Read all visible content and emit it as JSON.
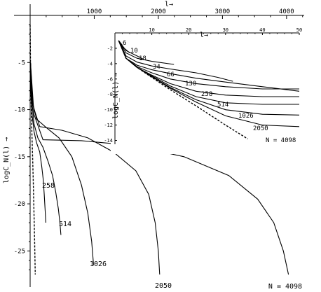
{
  "chart_data": [
    {
      "type": "line",
      "id": "main",
      "xlabel": "l→",
      "ylabel": "logC_N(l) →",
      "xlim": [
        -20,
        4300
      ],
      "ylim": [
        -27.5,
        0
      ],
      "xticks": [
        1000,
        2000,
        3000,
        4000
      ],
      "yticks": [
        -5,
        -10,
        -15,
        -20,
        -25
      ],
      "grid": false,
      "series": [
        {
          "name": "258",
          "x": [
            5,
            10,
            30,
            60,
            100,
            150,
            180,
            205,
            220,
            235,
            245
          ],
          "y": [
            -5.0,
            -8.0,
            -10.5,
            -12.3,
            -13.5,
            -14.5,
            -16.0,
            -17.5,
            -19.0,
            -20.8,
            -22.0
          ]
        },
        {
          "name": "514",
          "x": [
            5,
            20,
            60,
            120,
            200,
            280,
            350,
            400,
            440,
            465,
            480
          ],
          "y": [
            -5.0,
            -8.5,
            -11.5,
            -13.0,
            -14.0,
            -15.5,
            -17.0,
            -18.8,
            -20.5,
            -22.0,
            -23.3
          ]
        },
        {
          "name": "1026",
          "x": [
            5,
            30,
            100,
            250,
            450,
            650,
            800,
            900,
            960,
            990
          ],
          "y": [
            -5.0,
            -9.0,
            -11.0,
            -11.9,
            -13.0,
            -15.0,
            -18.0,
            -21.0,
            -24.0,
            -26.5
          ]
        },
        {
          "name": "2050",
          "x": [
            5,
            40,
            150,
            500,
            900,
            1300,
            1650,
            1850,
            1950,
            2000,
            2020
          ],
          "y": [
            -5.0,
            -9.5,
            -11.8,
            -12.2,
            -13.0,
            -14.5,
            -16.5,
            -19.0,
            -22.0,
            -25.0,
            -27.5
          ]
        },
        {
          "name": "N = 4098",
          "x": [
            5,
            60,
            200,
            800,
            1600,
            2400,
            3100,
            3550,
            3800,
            3950,
            4030
          ],
          "y": [
            -5.0,
            -10.5,
            -13.2,
            -13.3,
            -13.8,
            -15.0,
            -17.0,
            -19.5,
            -22.0,
            -25.0,
            -27.5
          ]
        }
      ],
      "asymptote": {
        "x": [
          0,
          5,
          10,
          20,
          30,
          40,
          50,
          60,
          70,
          80
        ],
        "y": [
          -1.0,
          -5.0,
          -7.5,
          -10.5,
          -13.0,
          -15.5,
          -18.0,
          -21.0,
          -24.0,
          -27.5
        ]
      }
    },
    {
      "type": "line",
      "id": "inset",
      "xlabel": "l→",
      "ylabel": "logC_N(l) →",
      "xlim": [
        0,
        50
      ],
      "ylim": [
        -14.5,
        0
      ],
      "xticks": [
        10,
        20,
        30,
        40,
        50
      ],
      "yticks": [
        -2,
        -4,
        -6,
        -8,
        -10,
        -12,
        -14
      ],
      "grid": false,
      "series": [
        {
          "name": "6",
          "x": [
            1,
            2
          ],
          "y": [
            -1.0,
            -1.6
          ]
        },
        {
          "name": "10",
          "x": [
            1,
            2,
            3,
            4
          ],
          "y": [
            -1.0,
            -1.8,
            -2.2,
            -2.6
          ]
        },
        {
          "name": "18",
          "x": [
            1,
            3,
            6,
            8
          ],
          "y": [
            -1.0,
            -2.3,
            -3.0,
            -3.5
          ]
        },
        {
          "name": "34",
          "x": [
            1,
            3,
            6,
            10,
            16
          ],
          "y": [
            -1.0,
            -2.6,
            -3.3,
            -3.7,
            -4.1
          ]
        },
        {
          "name": "66",
          "x": [
            1,
            3,
            6,
            10,
            15,
            22,
            28,
            32
          ],
          "y": [
            -1.0,
            -3.0,
            -3.8,
            -4.3,
            -4.7,
            -5.2,
            -5.8,
            -6.3
          ]
        },
        {
          "name": "130",
          "x": [
            1,
            3,
            6,
            10,
            15,
            22,
            30,
            40,
            50
          ],
          "y": [
            -1.0,
            -3.3,
            -4.2,
            -4.8,
            -5.3,
            -5.9,
            -6.4,
            -7.0,
            -7.6
          ]
        },
        {
          "name": "258",
          "x": [
            1,
            3,
            6,
            10,
            15,
            22,
            30,
            40,
            50
          ],
          "y": [
            -1.0,
            -3.3,
            -4.4,
            -5.2,
            -6.0,
            -6.6,
            -7.0,
            -7.3,
            -7.3
          ]
        },
        {
          "name": "514",
          "x": [
            1,
            3,
            6,
            10,
            15,
            22,
            30,
            40,
            50
          ],
          "y": [
            -1.0,
            -3.3,
            -4.5,
            -5.5,
            -6.6,
            -7.6,
            -8.1,
            -8.3,
            -8.3
          ]
        },
        {
          "name": "1026",
          "x": [
            1,
            3,
            6,
            10,
            15,
            22,
            30,
            40,
            50
          ],
          "y": [
            -1.0,
            -3.3,
            -4.5,
            -5.6,
            -6.9,
            -8.3,
            -9.1,
            -9.3,
            -9.3
          ]
        },
        {
          "name": "2050",
          "x": [
            1,
            3,
            6,
            10,
            15,
            22,
            30,
            40,
            50
          ],
          "y": [
            -1.0,
            -3.3,
            -4.5,
            -5.7,
            -7.1,
            -8.7,
            -10.0,
            -10.6,
            -10.7
          ]
        },
        {
          "name": "N = 4098",
          "x": [
            1,
            3,
            6,
            10,
            15,
            22,
            30,
            40,
            50
          ],
          "y": [
            -1.0,
            -3.3,
            -4.5,
            -5.7,
            -7.2,
            -9.0,
            -10.8,
            -12.0,
            -12.2
          ]
        }
      ],
      "asymptote": {
        "x": [
          1,
          3,
          6,
          10,
          15,
          22,
          30,
          36
        ],
        "y": [
          -1.0,
          -3.3,
          -4.5,
          -5.8,
          -7.4,
          -9.5,
          -12.0,
          -13.8
        ]
      }
    }
  ]
}
